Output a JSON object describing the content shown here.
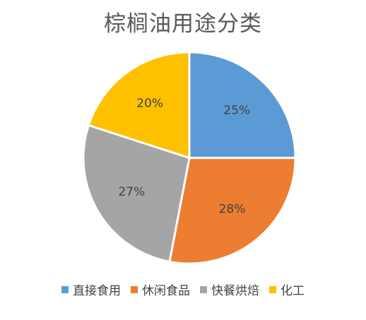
{
  "chart_data": {
    "type": "pie",
    "title": "棕榈油用途分类",
    "categories": [
      "直接食用",
      "休闲食品",
      "快餐烘焙",
      "化工"
    ],
    "values": [
      25,
      28,
      27,
      20
    ],
    "labels": [
      "25%",
      "28%",
      "27%",
      "20%"
    ],
    "colors": [
      "#5B9BD5",
      "#ED7D31",
      "#A5A5A5",
      "#FFC000"
    ],
    "legend": "bottom"
  }
}
